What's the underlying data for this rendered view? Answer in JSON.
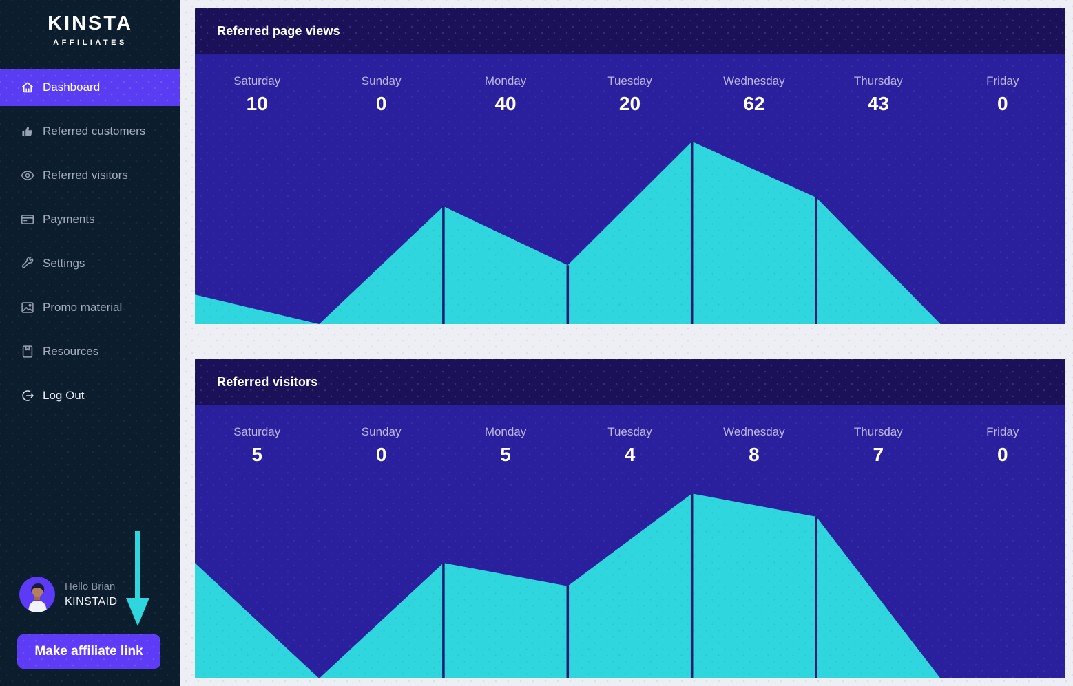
{
  "brand": {
    "name": "KINSTA",
    "tagline": "AFFILIATES"
  },
  "sidebar": {
    "items": [
      {
        "label": "Dashboard",
        "icon": "home-icon",
        "active": true
      },
      {
        "label": "Referred customers",
        "icon": "thumbs-up-icon"
      },
      {
        "label": "Referred visitors",
        "icon": "eye-icon"
      },
      {
        "label": "Payments",
        "icon": "credit-card-icon"
      },
      {
        "label": "Settings",
        "icon": "wrench-icon"
      },
      {
        "label": "Promo material",
        "icon": "image-icon"
      },
      {
        "label": "Resources",
        "icon": "book-icon"
      },
      {
        "label": "Log Out",
        "icon": "logout-icon",
        "bright": true
      }
    ],
    "user": {
      "greeting": "Hello Brian",
      "id": "KINSTAID"
    },
    "cta_label": "Make affiliate link",
    "arrow_icon": "down-arrow-icon"
  },
  "colors": {
    "sidebar_bg": "#0c1d2e",
    "accent_purple": "#5a3df2",
    "button_purple": "#5e3bf7",
    "area_teal": "#2fd6de",
    "chart_bg": "#2a1f9c",
    "chart_header_bg": "#1a1158",
    "separator_line": "#1c1a6e",
    "page_bg": "#edeff4",
    "day_label": "#bcb8e8"
  },
  "chart_data": [
    {
      "type": "area",
      "title": "Referred page views",
      "categories": [
        "Saturday",
        "Sunday",
        "Monday",
        "Tuesday",
        "Wednesday",
        "Thursday",
        "Friday"
      ],
      "values": [
        10,
        0,
        40,
        20,
        62,
        43,
        0
      ],
      "xlabel": "",
      "ylabel": "",
      "ylim": [
        0,
        62
      ],
      "grid": false,
      "legend": "none",
      "notes": "teal area on indigo background, value labels above chart, dark separator lines at each data point"
    },
    {
      "type": "area",
      "title": "Referred visitors",
      "categories": [
        "Saturday",
        "Sunday",
        "Monday",
        "Tuesday",
        "Wednesday",
        "Thursday",
        "Friday"
      ],
      "values": [
        5,
        0,
        5,
        4,
        8,
        7,
        0
      ],
      "xlabel": "",
      "ylabel": "",
      "ylim": [
        0,
        8
      ],
      "grid": false,
      "legend": "none",
      "notes": "teal area on indigo background, value labels above chart, dark separator lines at each data point"
    }
  ]
}
